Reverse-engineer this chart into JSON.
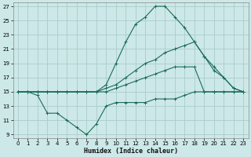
{
  "xlabel": "Humidex (Indice chaleur)",
  "bg_color": "#cde8e8",
  "grid_color": "#aacccc",
  "line_color": "#1a6b5a",
  "xlim": [
    -0.5,
    23.5
  ],
  "ylim": [
    8.5,
    27.5
  ],
  "xticks": [
    0,
    1,
    2,
    3,
    4,
    5,
    6,
    7,
    8,
    9,
    10,
    11,
    12,
    13,
    14,
    15,
    16,
    17,
    18,
    19,
    20,
    21,
    22,
    23
  ],
  "yticks": [
    9,
    11,
    13,
    15,
    17,
    19,
    21,
    23,
    25,
    27
  ],
  "line_top_x": [
    0,
    1,
    2,
    3,
    4,
    5,
    6,
    7,
    8,
    9,
    10,
    11,
    12,
    13,
    14,
    15,
    16,
    17,
    18,
    19,
    20,
    21,
    22,
    23
  ],
  "line_top_y": [
    15,
    15,
    15,
    15,
    15,
    15,
    15,
    15,
    15,
    16,
    19,
    22,
    24.5,
    25.5,
    27,
    27,
    25.5,
    24,
    22,
    20,
    18,
    17,
    15.5,
    15
  ],
  "line_upper_x": [
    0,
    1,
    2,
    3,
    4,
    5,
    6,
    7,
    8,
    9,
    10,
    11,
    12,
    13,
    14,
    15,
    16,
    17,
    18,
    19,
    20,
    21,
    22,
    23
  ],
  "line_upper_y": [
    15,
    15,
    15,
    15,
    15,
    15,
    15,
    15,
    15,
    15.5,
    16,
    17,
    18,
    19,
    19.5,
    20.5,
    21,
    21.5,
    22,
    20,
    18.5,
    17,
    15.5,
    15
  ],
  "line_lower_x": [
    0,
    1,
    2,
    3,
    4,
    5,
    6,
    7,
    8,
    9,
    10,
    11,
    12,
    13,
    14,
    15,
    16,
    17,
    18,
    19,
    20,
    21,
    22,
    23
  ],
  "line_lower_y": [
    15,
    15,
    15,
    15,
    15,
    15,
    15,
    15,
    15,
    15,
    15.5,
    16,
    16.5,
    17,
    17.5,
    18,
    18.5,
    18.5,
    18.5,
    15,
    15,
    15,
    15,
    15
  ],
  "line_bot_x": [
    0,
    1,
    2,
    3,
    4,
    5,
    6,
    7,
    8,
    9,
    10,
    11,
    12,
    13,
    14,
    15,
    16,
    17,
    18,
    19,
    20,
    21,
    22,
    23
  ],
  "line_bot_y": [
    15,
    15,
    14.5,
    12,
    12,
    11,
    10,
    9,
    10.5,
    13,
    13.5,
    13.5,
    13.5,
    13.5,
    14,
    14,
    14,
    14.5,
    15,
    15,
    15,
    15,
    15,
    15
  ]
}
